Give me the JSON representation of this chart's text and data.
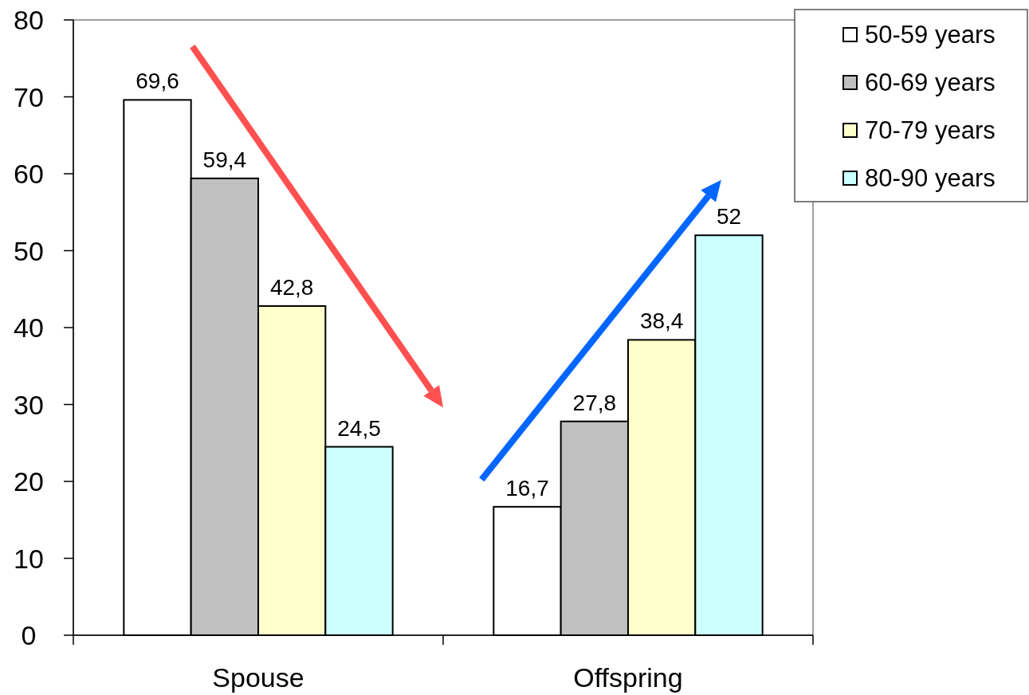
{
  "chart_data": {
    "type": "bar",
    "categories": [
      "Spouse",
      "Offspring"
    ],
    "series": [
      {
        "name": "50-59 years",
        "color": "#ffffff",
        "values": [
          69.6,
          16.7
        ],
        "value_labels": [
          "69,6",
          "16,7"
        ]
      },
      {
        "name": "60-69 years",
        "color": "#c0c0c0",
        "values": [
          59.4,
          27.8
        ],
        "value_labels": [
          "59,4",
          "27,8"
        ]
      },
      {
        "name": "70-79 years",
        "color": "#ffffcc",
        "values": [
          42.8,
          38.4
        ],
        "value_labels": [
          "42,8",
          "38,4"
        ]
      },
      {
        "name": "80-90 years",
        "color": "#ccffff",
        "values": [
          24.5,
          52
        ],
        "value_labels": [
          "24,5",
          "52"
        ]
      }
    ],
    "ylim": [
      0,
      80
    ],
    "yticks": [
      0,
      10,
      20,
      30,
      40,
      50,
      60,
      70,
      80
    ],
    "legend": "top right"
  }
}
